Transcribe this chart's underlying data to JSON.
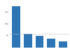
{
  "values": [
    175000,
    58000,
    50000,
    37000,
    26000
  ],
  "bar_color": "#2e75b6",
  "background_color": "#ffffff",
  "dashed_line_value": 58000,
  "ylim": [
    0,
    195000
  ],
  "bar_width": 0.7,
  "figsize": [
    1.0,
    0.71
  ],
  "dpi": 100,
  "ytick_labels": [
    "",
    "50",
    "100",
    "150"
  ],
  "ytick_values": [
    0,
    50000,
    100000,
    150000
  ]
}
